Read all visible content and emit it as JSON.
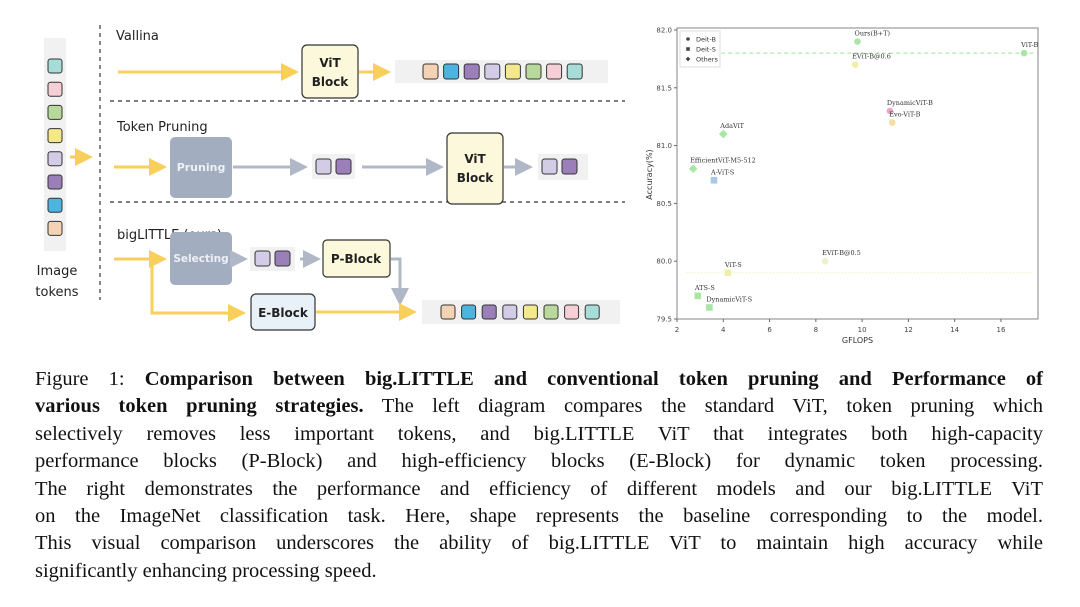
{
  "diagram": {
    "input_label_line1": "Image",
    "input_label_line2": "tokens",
    "rows": {
      "vanilla": {
        "title": "Vallina",
        "block_line1": "ViT",
        "block_line2": "Block"
      },
      "pruning": {
        "title": "Token Pruning",
        "pruning_label": "Pruning",
        "block_line1": "ViT",
        "block_line2": "Block"
      },
      "biglittle": {
        "title": "bigLITTLE (ours)",
        "selecting_label": "Selecting",
        "p_block": "P-Block",
        "e_block": "E-Block"
      }
    },
    "token_colors": [
      "#a8dcd9",
      "#f6cfd6",
      "#b9d89b",
      "#f3e98a",
      "#d2cce6",
      "#9b7fb8",
      "#4bb5df",
      "#f4d3b4"
    ],
    "output_token_colors": [
      "#f4d3b4",
      "#4bb5df",
      "#9b7fb8",
      "#d2cce6",
      "#f3e98a",
      "#b9d89b",
      "#f6cfd6",
      "#a8dcd9"
    ],
    "kept_token_colors": [
      "#d2cce6",
      "#9b7fb8"
    ],
    "colors": {
      "arrow_yellow": "#f7cf5a",
      "arrow_gray": "#b0b8c8",
      "vit_block": "#fbf8dc",
      "gray_block": "#a3adc0",
      "e_block": "#e9f1f8"
    }
  },
  "chart_data": {
    "type": "scatter",
    "title": "",
    "xlabel": "GFLOPS",
    "ylabel": "Accuracy(%)",
    "xlim": [
      2,
      17.6
    ],
    "ylim": [
      79.5,
      82.0
    ],
    "xticks": [
      "2",
      "4",
      "6",
      "8",
      "10",
      "12",
      "14",
      "16"
    ],
    "yticks": [
      "79.5",
      "80.0",
      "80.5",
      "81.0",
      "81.5",
      "82.0"
    ],
    "grid": false,
    "legend": {
      "placement": "top-left",
      "entries": [
        {
          "label": "Deit-B",
          "marker": "circle"
        },
        {
          "label": "Deit-S",
          "marker": "square"
        },
        {
          "label": "Others",
          "marker": "diamond"
        }
      ]
    },
    "reference_lines": [
      {
        "y": 81.8,
        "color": "#9ee39a",
        "style": "dashed"
      },
      {
        "y": 79.9,
        "color": "#e8eda0",
        "style": "dotted"
      }
    ],
    "points": [
      {
        "label": "Ours(B+T)",
        "x": 9.8,
        "y": 81.9,
        "marker": "circle",
        "color": "#a9e6a4"
      },
      {
        "label": "ViT-B",
        "x": 17.0,
        "y": 81.8,
        "marker": "circle",
        "color": "#a9e6a4"
      },
      {
        "label": "EViT-B@0.6",
        "x": 9.7,
        "y": 81.7,
        "marker": "circle",
        "color": "#eef0a8"
      },
      {
        "label": "DynamicViT-B",
        "x": 11.2,
        "y": 81.3,
        "marker": "circle",
        "color": "#e6a8c8"
      },
      {
        "label": "Evo-ViT-B",
        "x": 11.3,
        "y": 81.2,
        "marker": "circle",
        "color": "#f3dea8"
      },
      {
        "label": "AdaViT",
        "x": 4.0,
        "y": 81.1,
        "marker": "diamond",
        "color": "#a9e6a4"
      },
      {
        "label": "EfficientViT-M5-512",
        "x": 2.7,
        "y": 80.8,
        "marker": "diamond",
        "color": "#a9e6a4"
      },
      {
        "label": "A-ViT-S",
        "x": 3.6,
        "y": 80.7,
        "marker": "square",
        "color": "#a8c8e6"
      },
      {
        "label": "EViT-B@0.5",
        "x": 8.4,
        "y": 80.0,
        "marker": "circle",
        "color": "#eef0c8"
      },
      {
        "label": "ViT-S",
        "x": 4.2,
        "y": 79.9,
        "marker": "square",
        "color": "#eef0a8"
      },
      {
        "label": "ATS-S",
        "x": 2.9,
        "y": 79.7,
        "marker": "square",
        "color": "#a9e6a4"
      },
      {
        "label": "DynamicViT-S",
        "x": 3.4,
        "y": 79.6,
        "marker": "square",
        "color": "#a9e6a4"
      }
    ]
  },
  "caption": {
    "prefix": "Figure 1: ",
    "bold_line1": "Comparison between big.LITTLE and conventional token pruning and Performance of",
    "bold_line2": "various token pruning strategies.",
    "line2_rest": " The left diagram compares the standard ViT, token pruning which",
    "line3": "selectively removes less important tokens, and big.LITTLE ViT that integrates both high-capacity",
    "line4": "performance blocks (P-Block) and high-efficiency blocks (E-Block) for dynamic token processing.",
    "line5": "The right demonstrates the performance and efficiency of different models and our big.LITTLE ViT",
    "line6": "on the ImageNet classification task. Here, shape represents the baseline corresponding to the model.",
    "line7": "This visual comparison underscores the ability of big.LITTLE ViT to maintain high accuracy while",
    "line8": "significantly enhancing processing speed."
  }
}
